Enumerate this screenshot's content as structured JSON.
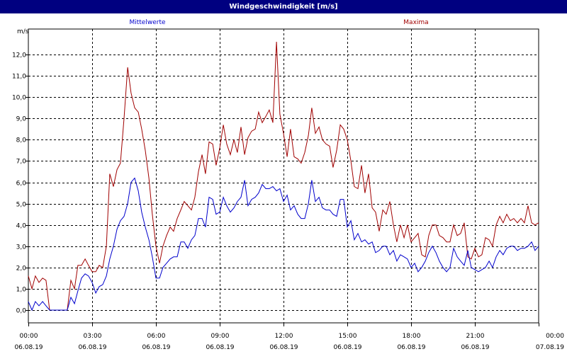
{
  "chart_data": {
    "type": "line",
    "title": "Windgeschwindigkeit [m/s]",
    "ylabel": "m/s",
    "ylim": [
      -0.6,
      13.2
    ],
    "yticks": [
      "0,0",
      "1,0",
      "2,0",
      "3,0",
      "4,0",
      "5,0",
      "6,0",
      "7,0",
      "8,0",
      "9,0",
      "10,0",
      "11,0",
      "12,0"
    ],
    "xlim_hours": [
      0,
      24
    ],
    "xticks": [
      {
        "time": "00:00",
        "date": "06.08.19"
      },
      {
        "time": "03:00",
        "date": "06.08.19"
      },
      {
        "time": "06:00",
        "date": "06.08.19"
      },
      {
        "time": "09:00",
        "date": "06.08.19"
      },
      {
        "time": "12:00",
        "date": "06.08.19"
      },
      {
        "time": "15:00",
        "date": "06.08.19"
      },
      {
        "time": "18:00",
        "date": "06.08.19"
      },
      {
        "time": "21:00",
        "date": "06.08.19"
      },
      {
        "time": "00:00",
        "date": "07.08.19"
      }
    ],
    "grid": true,
    "colors": {
      "mean": "#0000cc",
      "max": "#a00000",
      "title_bg": "#000080"
    },
    "series": [
      {
        "name": "Mittelwerte",
        "points": [
          [
            0,
            0.4
          ],
          [
            0.17,
            0
          ],
          [
            0.33,
            0.4
          ],
          [
            0.5,
            0.2
          ],
          [
            0.67,
            0.4
          ],
          [
            0.83,
            0.2
          ],
          [
            1,
            0
          ],
          [
            1.5,
            0
          ],
          [
            1.83,
            0
          ],
          [
            2,
            0.6
          ],
          [
            2.17,
            0.3
          ],
          [
            2.33,
            0.9
          ],
          [
            2.5,
            1.5
          ],
          [
            2.67,
            1.7
          ],
          [
            2.83,
            1.6
          ],
          [
            3,
            1.3
          ],
          [
            3.17,
            0.8
          ],
          [
            3.33,
            1.1
          ],
          [
            3.5,
            1.2
          ],
          [
            3.67,
            1.6
          ],
          [
            3.83,
            2.4
          ],
          [
            4,
            3.0
          ],
          [
            4.17,
            3.8
          ],
          [
            4.33,
            4.2
          ],
          [
            4.5,
            4.4
          ],
          [
            4.67,
            5.0
          ],
          [
            4.83,
            6.0
          ],
          [
            5,
            6.2
          ],
          [
            5.17,
            5.6
          ],
          [
            5.33,
            4.6
          ],
          [
            5.5,
            3.9
          ],
          [
            5.67,
            3.3
          ],
          [
            5.83,
            2.5
          ],
          [
            6,
            1.5
          ],
          [
            6.17,
            1.5
          ],
          [
            6.33,
            2.0
          ],
          [
            6.5,
            2.2
          ],
          [
            6.67,
            2.4
          ],
          [
            6.83,
            2.5
          ],
          [
            7,
            2.5
          ],
          [
            7.17,
            3.2
          ],
          [
            7.33,
            3.2
          ],
          [
            7.5,
            2.9
          ],
          [
            7.67,
            3.3
          ],
          [
            7.83,
            3.5
          ],
          [
            8,
            4.3
          ],
          [
            8.17,
            4.3
          ],
          [
            8.33,
            3.9
          ],
          [
            8.5,
            5.3
          ],
          [
            8.67,
            5.2
          ],
          [
            8.83,
            4.5
          ],
          [
            9,
            4.6
          ],
          [
            9.17,
            5.3
          ],
          [
            9.33,
            4.9
          ],
          [
            9.5,
            4.6
          ],
          [
            9.67,
            4.8
          ],
          [
            9.83,
            5.1
          ],
          [
            10,
            5.3
          ],
          [
            10.17,
            6.1
          ],
          [
            10.33,
            4.9
          ],
          [
            10.5,
            5.2
          ],
          [
            10.67,
            5.3
          ],
          [
            10.83,
            5.5
          ],
          [
            11,
            5.9
          ],
          [
            11.17,
            5.7
          ],
          [
            11.33,
            5.7
          ],
          [
            11.5,
            5.8
          ],
          [
            11.67,
            5.6
          ],
          [
            11.83,
            5.7
          ],
          [
            12,
            5.1
          ],
          [
            12.17,
            5.4
          ],
          [
            12.33,
            4.7
          ],
          [
            12.5,
            4.9
          ],
          [
            12.67,
            4.5
          ],
          [
            12.83,
            4.3
          ],
          [
            13,
            4.3
          ],
          [
            13.17,
            5.0
          ],
          [
            13.33,
            6.1
          ],
          [
            13.5,
            5.1
          ],
          [
            13.67,
            5.3
          ],
          [
            13.83,
            4.8
          ],
          [
            14,
            4.7
          ],
          [
            14.17,
            4.7
          ],
          [
            14.33,
            4.5
          ],
          [
            14.5,
            4.4
          ],
          [
            14.67,
            5.2
          ],
          [
            14.83,
            5.2
          ],
          [
            15,
            3.9
          ],
          [
            15.17,
            4.2
          ],
          [
            15.33,
            3.3
          ],
          [
            15.5,
            3.6
          ],
          [
            15.67,
            3.2
          ],
          [
            15.83,
            3.3
          ],
          [
            16,
            3.1
          ],
          [
            16.17,
            3.2
          ],
          [
            16.33,
            2.7
          ],
          [
            16.5,
            2.8
          ],
          [
            16.67,
            3.0
          ],
          [
            16.83,
            3.0
          ],
          [
            17,
            2.6
          ],
          [
            17.17,
            2.8
          ],
          [
            17.33,
            2.3
          ],
          [
            17.5,
            2.6
          ],
          [
            17.67,
            2.5
          ],
          [
            17.83,
            2.4
          ],
          [
            18,
            2.0
          ],
          [
            18.17,
            2.2
          ],
          [
            18.33,
            1.8
          ],
          [
            18.5,
            2.0
          ],
          [
            18.67,
            2.3
          ],
          [
            18.83,
            2.7
          ],
          [
            19,
            3.0
          ],
          [
            19.17,
            2.7
          ],
          [
            19.33,
            2.3
          ],
          [
            19.5,
            2.0
          ],
          [
            19.67,
            1.8
          ],
          [
            19.83,
            2.0
          ],
          [
            20,
            2.9
          ],
          [
            20.17,
            2.5
          ],
          [
            20.33,
            2.3
          ],
          [
            20.5,
            2.1
          ],
          [
            20.67,
            2.8
          ],
          [
            20.83,
            2.0
          ],
          [
            21,
            1.9
          ],
          [
            21.17,
            1.8
          ],
          [
            21.33,
            1.9
          ],
          [
            21.5,
            2.0
          ],
          [
            21.67,
            2.3
          ],
          [
            21.83,
            2.0
          ],
          [
            22,
            2.5
          ],
          [
            22.17,
            2.8
          ],
          [
            22.33,
            2.6
          ],
          [
            22.5,
            2.9
          ],
          [
            22.67,
            3.0
          ],
          [
            22.83,
            3.0
          ],
          [
            23,
            2.8
          ],
          [
            23.17,
            2.9
          ],
          [
            23.33,
            2.9
          ],
          [
            23.5,
            3.0
          ],
          [
            23.67,
            3.2
          ],
          [
            23.83,
            2.8
          ],
          [
            24,
            3.0
          ]
        ]
      },
      {
        "name": "Maxima",
        "points": [
          [
            0,
            1.6
          ],
          [
            0.17,
            1.0
          ],
          [
            0.33,
            1.6
          ],
          [
            0.5,
            1.3
          ],
          [
            0.67,
            1.5
          ],
          [
            0.83,
            1.4
          ],
          [
            1,
            0
          ],
          [
            1.5,
            0
          ],
          [
            1.83,
            0
          ],
          [
            2,
            1.4
          ],
          [
            2.17,
            1.0
          ],
          [
            2.33,
            2.1
          ],
          [
            2.5,
            2.1
          ],
          [
            2.67,
            2.4
          ],
          [
            2.83,
            2.1
          ],
          [
            3,
            1.8
          ],
          [
            3.17,
            1.8
          ],
          [
            3.33,
            2.1
          ],
          [
            3.5,
            2.0
          ],
          [
            3.67,
            3.0
          ],
          [
            3.83,
            6.4
          ],
          [
            4,
            5.8
          ],
          [
            4.17,
            6.6
          ],
          [
            4.33,
            6.9
          ],
          [
            4.5,
            9.0
          ],
          [
            4.67,
            11.4
          ],
          [
            4.83,
            10.2
          ],
          [
            5,
            9.5
          ],
          [
            5.17,
            9.3
          ],
          [
            5.33,
            8.5
          ],
          [
            5.5,
            7.5
          ],
          [
            5.67,
            6.2
          ],
          [
            5.83,
            4.5
          ],
          [
            6,
            3.0
          ],
          [
            6.17,
            2.2
          ],
          [
            6.33,
            3.0
          ],
          [
            6.5,
            3.5
          ],
          [
            6.67,
            3.9
          ],
          [
            6.83,
            3.7
          ],
          [
            7,
            4.3
          ],
          [
            7.17,
            4.7
          ],
          [
            7.33,
            5.1
          ],
          [
            7.5,
            4.9
          ],
          [
            7.67,
            4.7
          ],
          [
            7.83,
            5.3
          ],
          [
            8,
            6.5
          ],
          [
            8.17,
            7.3
          ],
          [
            8.33,
            6.4
          ],
          [
            8.5,
            7.9
          ],
          [
            8.67,
            7.8
          ],
          [
            8.83,
            6.8
          ],
          [
            9,
            7.6
          ],
          [
            9.17,
            8.7
          ],
          [
            9.33,
            7.8
          ],
          [
            9.5,
            7.3
          ],
          [
            9.67,
            8.0
          ],
          [
            9.83,
            7.4
          ],
          [
            10,
            8.6
          ],
          [
            10.17,
            7.3
          ],
          [
            10.33,
            8.1
          ],
          [
            10.5,
            8.4
          ],
          [
            10.67,
            8.5
          ],
          [
            10.83,
            9.3
          ],
          [
            11,
            8.8
          ],
          [
            11.17,
            9.1
          ],
          [
            11.33,
            9.4
          ],
          [
            11.5,
            8.8
          ],
          [
            11.67,
            12.6
          ],
          [
            11.83,
            9.2
          ],
          [
            12,
            8.3
          ],
          [
            12.17,
            7.2
          ],
          [
            12.33,
            8.5
          ],
          [
            12.5,
            7.2
          ],
          [
            12.67,
            7.1
          ],
          [
            12.83,
            6.9
          ],
          [
            13,
            7.4
          ],
          [
            13.17,
            8.2
          ],
          [
            13.33,
            9.5
          ],
          [
            13.5,
            8.3
          ],
          [
            13.67,
            8.6
          ],
          [
            13.83,
            8.0
          ],
          [
            14,
            7.8
          ],
          [
            14.17,
            7.7
          ],
          [
            14.33,
            6.7
          ],
          [
            14.5,
            7.5
          ],
          [
            14.67,
            8.7
          ],
          [
            14.83,
            8.5
          ],
          [
            15,
            8.0
          ],
          [
            15.17,
            7.0
          ],
          [
            15.33,
            5.8
          ],
          [
            15.5,
            5.7
          ],
          [
            15.67,
            6.8
          ],
          [
            15.83,
            5.5
          ],
          [
            16,
            6.4
          ],
          [
            16.17,
            4.8
          ],
          [
            16.33,
            4.6
          ],
          [
            16.5,
            3.7
          ],
          [
            16.67,
            4.7
          ],
          [
            16.83,
            4.5
          ],
          [
            17,
            5.1
          ],
          [
            17.17,
            4.0
          ],
          [
            17.33,
            3.2
          ],
          [
            17.5,
            4.0
          ],
          [
            17.67,
            3.4
          ],
          [
            17.83,
            4.0
          ],
          [
            18,
            3.2
          ],
          [
            18.17,
            3.4
          ],
          [
            18.33,
            3.6
          ],
          [
            18.5,
            2.6
          ],
          [
            18.67,
            2.5
          ],
          [
            18.83,
            3.5
          ],
          [
            19,
            4.0
          ],
          [
            19.17,
            4.0
          ],
          [
            19.33,
            3.5
          ],
          [
            19.5,
            3.4
          ],
          [
            19.67,
            3.2
          ],
          [
            19.83,
            3.2
          ],
          [
            20,
            4.0
          ],
          [
            20.17,
            3.5
          ],
          [
            20.33,
            3.6
          ],
          [
            20.5,
            4.1
          ],
          [
            20.67,
            2.5
          ],
          [
            20.83,
            2.4
          ],
          [
            21,
            2.9
          ],
          [
            21.17,
            2.5
          ],
          [
            21.33,
            2.6
          ],
          [
            21.5,
            3.4
          ],
          [
            21.67,
            3.3
          ],
          [
            21.83,
            3.0
          ],
          [
            22,
            4.0
          ],
          [
            22.17,
            4.4
          ],
          [
            22.33,
            4.1
          ],
          [
            22.5,
            4.5
          ],
          [
            22.67,
            4.2
          ],
          [
            22.83,
            4.3
          ],
          [
            23,
            4.1
          ],
          [
            23.17,
            4.3
          ],
          [
            23.33,
            4.1
          ],
          [
            23.5,
            4.9
          ],
          [
            23.67,
            4.1
          ],
          [
            23.83,
            4.0
          ],
          [
            24,
            4.1
          ]
        ]
      }
    ]
  }
}
